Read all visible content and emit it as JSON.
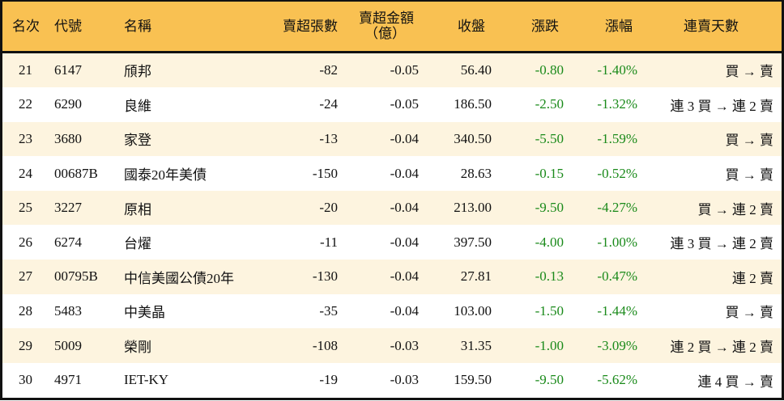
{
  "headers": [
    "名次",
    "代號",
    "名稱",
    "賣超張數",
    "賣超金額",
    "（億）",
    "收盤",
    "漲跌",
    "漲幅",
    "連賣天數"
  ],
  "colors": {
    "header_bg": "#f9c152",
    "odd_row_bg": "#fdf4df",
    "negative_change": "#1a8a1a"
  },
  "rows": [
    [
      "21",
      "6147",
      "頎邦",
      "-82",
      "-0.05",
      "56.40",
      "-0.80",
      "-1.40%",
      "買 → 賣"
    ],
    [
      "22",
      "6290",
      "良維",
      "-24",
      "-0.05",
      "186.50",
      "-2.50",
      "-1.32%",
      "連 3 買 → 連 2 賣"
    ],
    [
      "23",
      "3680",
      "家登",
      "-13",
      "-0.04",
      "340.50",
      "-5.50",
      "-1.59%",
      "買 → 賣"
    ],
    [
      "24",
      "00687B",
      "國泰20年美債",
      "-150",
      "-0.04",
      "28.63",
      "-0.15",
      "-0.52%",
      "買 → 賣"
    ],
    [
      "25",
      "3227",
      "原相",
      "-20",
      "-0.04",
      "213.00",
      "-9.50",
      "-4.27%",
      "買 → 連 2 賣"
    ],
    [
      "26",
      "6274",
      "台燿",
      "-11",
      "-0.04",
      "397.50",
      "-4.00",
      "-1.00%",
      "連 3 買 → 連 2 賣"
    ],
    [
      "27",
      "00795B",
      "中信美國公債20年",
      "-130",
      "-0.04",
      "27.81",
      "-0.13",
      "-0.47%",
      "連 2 賣"
    ],
    [
      "28",
      "5483",
      "中美晶",
      "-35",
      "-0.04",
      "103.00",
      "-1.50",
      "-1.44%",
      "買 → 賣"
    ],
    [
      "29",
      "5009",
      "榮剛",
      "-108",
      "-0.03",
      "31.35",
      "-1.00",
      "-3.09%",
      "連 2 買 → 連 2 賣"
    ],
    [
      "30",
      "4971",
      "IET-KY",
      "-19",
      "-0.03",
      "159.50",
      "-9.50",
      "-5.62%",
      "連 4 買 → 賣"
    ]
  ]
}
